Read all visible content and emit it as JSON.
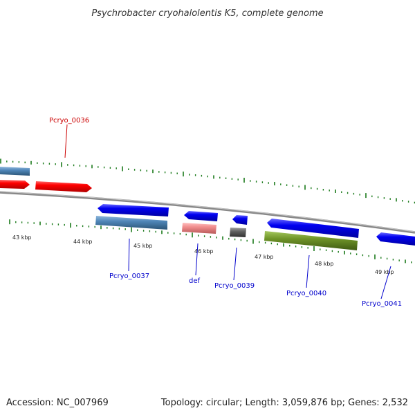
{
  "title": "Psychrobacter cryohalolentis K5, complete genome",
  "footer": {
    "accession": "Accession: NC_007969",
    "summary": "Topology: circular; Length: 3,059,876 bp; Genes: 2,532"
  },
  "scale": {
    "labels": [
      "43 kbp",
      "44 kbp",
      "45 kbp",
      "46 kbp",
      "47 kbp",
      "48 kbp",
      "49 kbp"
    ]
  },
  "genes": [
    {
      "label": "Pcryo_0036",
      "color": "#cc0000"
    },
    {
      "label": "Pcryo_0037",
      "color": "#0000cc"
    },
    {
      "label": "def",
      "color": "#0000cc"
    },
    {
      "label": "Pcryo_0039",
      "color": "#0000cc"
    },
    {
      "label": "Pcryo_0040",
      "color": "#0000cc"
    },
    {
      "label": "Pcryo_0041",
      "color": "#0000cc"
    }
  ],
  "colors": {
    "backbone": "#808080",
    "tick": "#1a7a1a",
    "cds_forward": "#ee0000",
    "cds_reverse": "#0000ee",
    "cog_blue": "#4f86b8",
    "cog_pink": "#f08c8c",
    "cog_gray": "#606060",
    "cog_olive": "#6f9428"
  }
}
